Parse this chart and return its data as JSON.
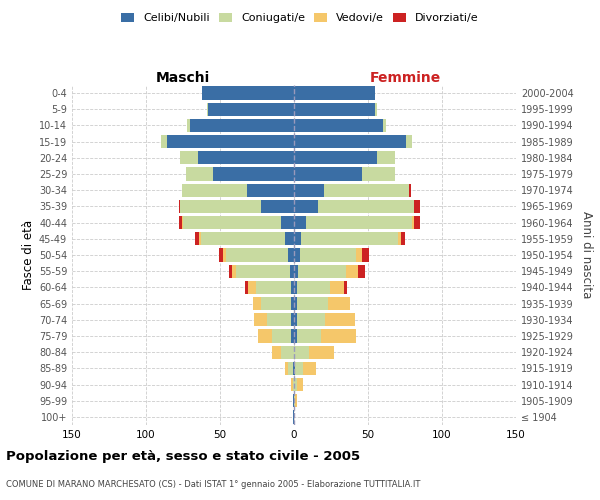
{
  "age_groups": [
    "100+",
    "95-99",
    "90-94",
    "85-89",
    "80-84",
    "75-79",
    "70-74",
    "65-69",
    "60-64",
    "55-59",
    "50-54",
    "45-49",
    "40-44",
    "35-39",
    "30-34",
    "25-29",
    "20-24",
    "15-19",
    "10-14",
    "5-9",
    "0-4"
  ],
  "birth_years": [
    "≤ 1904",
    "1905-1909",
    "1910-1914",
    "1915-1919",
    "1920-1924",
    "1925-1929",
    "1930-1934",
    "1935-1939",
    "1940-1944",
    "1945-1949",
    "1950-1954",
    "1955-1959",
    "1960-1964",
    "1965-1969",
    "1970-1974",
    "1975-1979",
    "1980-1984",
    "1985-1989",
    "1990-1994",
    "1995-1999",
    "2000-2004"
  ],
  "males_celibi": [
    1,
    1,
    0,
    1,
    0,
    2,
    2,
    2,
    2,
    3,
    4,
    6,
    9,
    22,
    32,
    55,
    65,
    86,
    70,
    58,
    62
  ],
  "males_coniugati": [
    0,
    0,
    1,
    3,
    9,
    13,
    16,
    20,
    24,
    36,
    42,
    57,
    66,
    55,
    44,
    18,
    12,
    4,
    2,
    1,
    0
  ],
  "males_vedovi": [
    0,
    0,
    1,
    2,
    6,
    9,
    9,
    6,
    5,
    3,
    2,
    1,
    1,
    0,
    0,
    0,
    0,
    0,
    0,
    0,
    0
  ],
  "males_divorziati": [
    0,
    0,
    0,
    0,
    0,
    0,
    0,
    0,
    2,
    2,
    3,
    3,
    2,
    1,
    0,
    0,
    0,
    0,
    0,
    0,
    0
  ],
  "females_nubili": [
    0,
    0,
    0,
    1,
    0,
    2,
    2,
    2,
    2,
    3,
    4,
    5,
    8,
    16,
    20,
    46,
    56,
    76,
    60,
    55,
    55
  ],
  "females_coniugate": [
    0,
    1,
    2,
    5,
    10,
    16,
    19,
    21,
    22,
    32,
    38,
    65,
    72,
    65,
    58,
    22,
    12,
    4,
    2,
    1,
    0
  ],
  "females_vedove": [
    0,
    1,
    4,
    9,
    17,
    24,
    20,
    15,
    10,
    8,
    4,
    2,
    1,
    0,
    0,
    0,
    0,
    0,
    0,
    0,
    0
  ],
  "females_divorziate": [
    0,
    0,
    0,
    0,
    0,
    0,
    0,
    0,
    2,
    5,
    5,
    3,
    4,
    4,
    1,
    0,
    0,
    0,
    0,
    0,
    0
  ],
  "color_celibi": "#3a6ea5",
  "color_coniugati": "#c8daa0",
  "color_vedovi": "#f5c76a",
  "color_divorziati": "#cc2222",
  "xlim": 150,
  "title": "Popolazione per età, sesso e stato civile - 2005",
  "subtitle": "COMUNE DI MARANO MARCHESATO (CS) - Dati ISTAT 1° gennaio 2005 - Elaborazione TUTTITALIA.IT",
  "ylabel_left": "Fasce di età",
  "ylabel_right": "Anni di nascita",
  "label_maschi": "Maschi",
  "label_femmine": "Femmine",
  "legend_labels": [
    "Celibi/Nubili",
    "Coniugati/e",
    "Vedovi/e",
    "Divorziati/e"
  ],
  "grid_color": "#cccccc",
  "bar_height": 0.82
}
